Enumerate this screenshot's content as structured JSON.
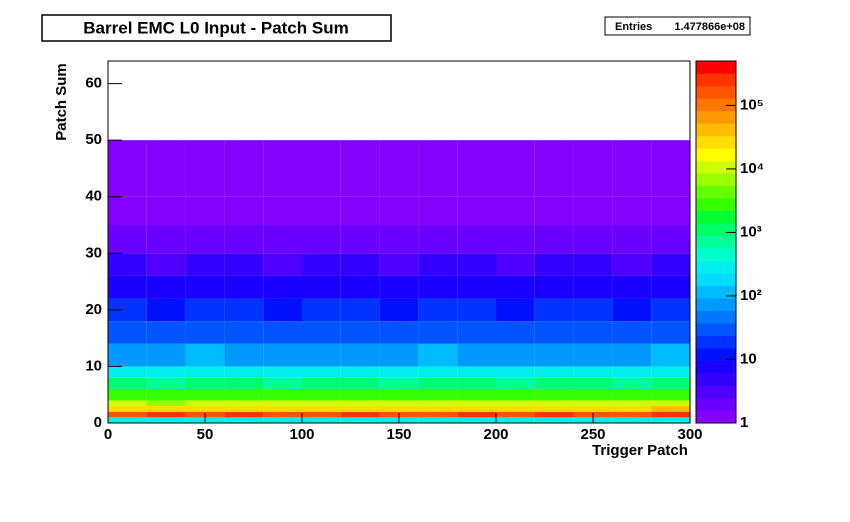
{
  "chart_data": {
    "type": "heatmap",
    "title": "Barrel EMC L0 Input - Patch Sum",
    "stats_label": "Entries",
    "stats_value": "1.477866e+08",
    "x_label": "Trigger Patch",
    "y_label": "Patch Sum",
    "x_bins": [
      0,
      20,
      40,
      60,
      80,
      100,
      120,
      140,
      160,
      180,
      200,
      220,
      240,
      260,
      280,
      300
    ],
    "y_bins": [
      0,
      1,
      2,
      3,
      4,
      6,
      8,
      10,
      14,
      18,
      22,
      26,
      30,
      35,
      40,
      50,
      64
    ],
    "values": [
      [
        250,
        320,
        280,
        300,
        260,
        310,
        290,
        300,
        270,
        330,
        280,
        300,
        260,
        310,
        290
      ],
      [
        200000,
        210000,
        190000,
        220000,
        200000,
        180000,
        210000,
        200000,
        190000,
        220000,
        200000,
        210000,
        190000,
        200000,
        220000
      ],
      [
        30000,
        28000,
        32000,
        30000,
        29000,
        31000,
        30000,
        28000,
        33000,
        30000,
        29000,
        31000,
        30000,
        28000,
        34000
      ],
      [
        9000,
        8500,
        9500,
        9000,
        8800,
        9200,
        9000,
        8600,
        9400,
        9000,
        8800,
        9200,
        9000,
        8600,
        9600
      ],
      [
        3000,
        2800,
        3200,
        3000,
        2900,
        3100,
        3000,
        2800,
        3200,
        3000,
        2900,
        3100,
        3000,
        2800,
        3200
      ],
      [
        900,
        850,
        950,
        900,
        880,
        920,
        900,
        860,
        940,
        900,
        880,
        920,
        900,
        860,
        950
      ],
      [
        250,
        240,
        260,
        250,
        245,
        255,
        250,
        240,
        260,
        250,
        245,
        255,
        250,
        240,
        260
      ],
      [
        90,
        85,
        95,
        90,
        88,
        92,
        90,
        86,
        94,
        90,
        88,
        92,
        90,
        86,
        95
      ],
      [
        35,
        33,
        37,
        35,
        34,
        36,
        35,
        33,
        37,
        35,
        34,
        36,
        35,
        33,
        37
      ],
      [
        16,
        15,
        17,
        16,
        15,
        17,
        16,
        15,
        17,
        16,
        15,
        17,
        16,
        15,
        17
      ],
      [
        8,
        7.5,
        8.5,
        8,
        7.5,
        8.5,
        8,
        7.5,
        8.5,
        8,
        7.5,
        8.5,
        8,
        7.5,
        8.5
      ],
      [
        4,
        3.8,
        4.2,
        4,
        3.8,
        4.2,
        4,
        3.8,
        4.2,
        4,
        3.8,
        4.2,
        4,
        3.8,
        4.2
      ],
      [
        2,
        1.9,
        2.1,
        2,
        1.9,
        2.1,
        2,
        1.9,
        2.1,
        2,
        1.9,
        2.1,
        2,
        1.9,
        2.1
      ],
      [
        1.4,
        1.3,
        1.5,
        1.4,
        1.3,
        1.5,
        1.4,
        1.3,
        1.5,
        1.4,
        1.3,
        1.5,
        1.4,
        1.3,
        1.5
      ],
      [
        1.1,
        1.05,
        1.15,
        1.1,
        1.05,
        1.15,
        1.1,
        1.05,
        1.15,
        1.1,
        1.05,
        1.15,
        1.1,
        1.05,
        1.15
      ],
      [
        0.6,
        0.6,
        0.6,
        0.6,
        0.6,
        0.6,
        0.6,
        0.6,
        0.6,
        0.6,
        0.6,
        0.6,
        0.6,
        0.6,
        0.6
      ]
    ],
    "xlim": [
      0,
      300
    ],
    "xticks": [
      0,
      50,
      100,
      150,
      200,
      250,
      300
    ],
    "ylim": [
      0,
      64
    ],
    "yticks": [
      0,
      10,
      20,
      30,
      40,
      50,
      60
    ],
    "zlim": [
      1,
      500000
    ],
    "zscale": "log",
    "zticks": [
      1,
      10,
      {
        "value": 100,
        "label": "10²"
      },
      {
        "value": 1000,
        "label": "10³"
      },
      {
        "value": 10000,
        "label": "10⁴"
      },
      {
        "value": 100000,
        "label": "10⁵"
      }
    ],
    "palette": [
      "#8400ff",
      "#6a00ff",
      "#4f00ff",
      "#3300ff",
      "#1a00ff",
      "#0010ff",
      "#0033ff",
      "#0055ff",
      "#0077ff",
      "#0099ff",
      "#00bbff",
      "#00ddff",
      "#00eeee",
      "#00ffcc",
      "#00ff99",
      "#00ff66",
      "#00ff33",
      "#33ff00",
      "#66ff00",
      "#99ff00",
      "#ccff00",
      "#ffff00",
      "#ffdd00",
      "#ffbb00",
      "#ff9900",
      "#ff7700",
      "#ff5500",
      "#ff3300",
      "#ff0000"
    ]
  }
}
